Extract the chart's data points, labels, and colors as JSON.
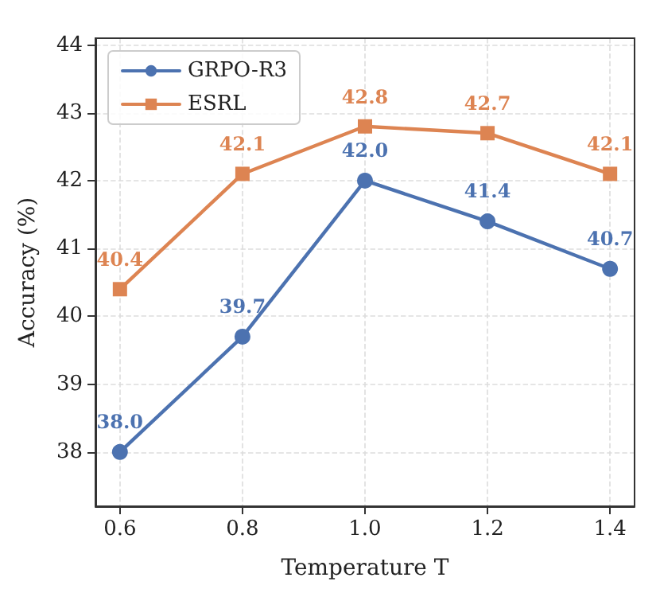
{
  "chart_data": {
    "type": "line",
    "xlabel": "Temperature T",
    "ylabel": "Accuracy (%)",
    "x": [
      0.6,
      0.8,
      1.0,
      1.2,
      1.4
    ],
    "series": [
      {
        "name": "GRPO-R3",
        "color": "#4c72b0",
        "marker": "circle",
        "values": [
          38.0,
          39.7,
          42.0,
          41.4,
          40.7
        ],
        "value_labels": [
          "38.0",
          "39.7",
          "42.0",
          "41.4",
          "40.7"
        ]
      },
      {
        "name": "ESRL",
        "color": "#dd8452",
        "marker": "square",
        "values": [
          40.4,
          42.1,
          42.8,
          42.7,
          42.1
        ],
        "value_labels": [
          "40.4",
          "42.1",
          "42.8",
          "42.7",
          "42.1"
        ]
      }
    ],
    "xlim": [
      0.56,
      1.44
    ],
    "ylim": [
      37.2,
      44.1
    ],
    "xticks": [
      {
        "value": 0.6,
        "label": "0.6"
      },
      {
        "value": 0.8,
        "label": "0.8"
      },
      {
        "value": 1.0,
        "label": "1.0"
      },
      {
        "value": 1.2,
        "label": "1.2"
      },
      {
        "value": 1.4,
        "label": "1.4"
      }
    ],
    "yticks": [
      38,
      39,
      40,
      41,
      42,
      43,
      44
    ],
    "grid": true,
    "legend": "top left",
    "line_style": "solid"
  }
}
